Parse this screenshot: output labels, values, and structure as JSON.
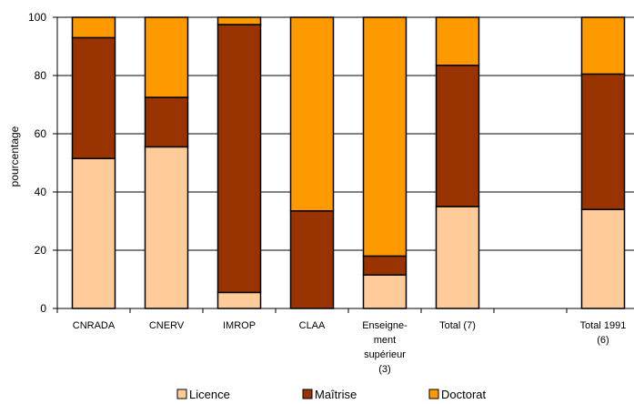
{
  "chart_data": {
    "type": "bar",
    "stacked": true,
    "title": "",
    "xlabel": "",
    "ylabel": "pourcentage",
    "ylim": [
      0,
      100
    ],
    "yticks": [
      "0",
      "20",
      "40",
      "60",
      "80",
      "100"
    ],
    "grid": "horizontal",
    "legend_position": "bottom",
    "categories": [
      {
        "lines": [
          "CNRADA"
        ]
      },
      {
        "lines": [
          "CNERV"
        ]
      },
      {
        "lines": [
          "IMROP"
        ]
      },
      {
        "lines": [
          "CLAA"
        ]
      },
      {
        "lines": [
          "Enseigne-",
          "ment",
          "supérieur",
          "(3)"
        ]
      },
      {
        "lines": [
          "Total (7)"
        ]
      },
      {
        "lines": [
          ""
        ]
      },
      {
        "lines": [
          "Total 1991",
          "(6)"
        ]
      }
    ],
    "series": [
      {
        "name": "Licence",
        "color": "#FFCC99",
        "values": [
          51.5,
          55.5,
          5.5,
          0,
          11.5,
          35,
          null,
          34
        ]
      },
      {
        "name": "Maîtrise",
        "color": "#993300",
        "values": [
          41.5,
          17,
          92,
          33.5,
          6.5,
          48.5,
          null,
          46.5
        ]
      },
      {
        "name": "Doctorat",
        "color": "#FF9900",
        "values": [
          7,
          27.5,
          2.5,
          66.5,
          82,
          16.5,
          null,
          19.5
        ]
      }
    ]
  }
}
